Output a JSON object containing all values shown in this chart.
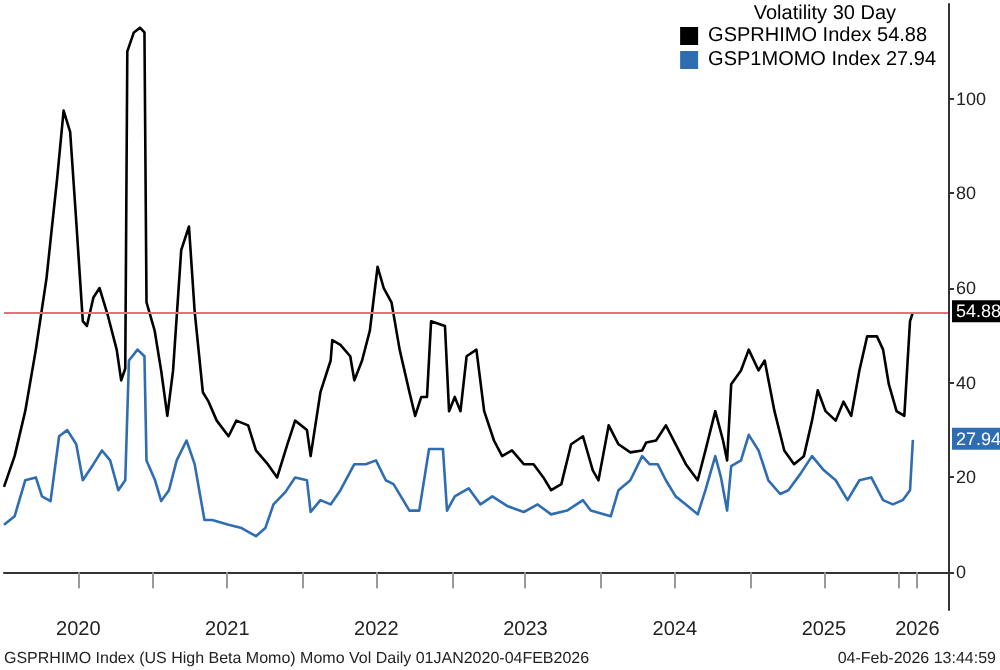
{
  "chart_data": {
    "type": "line",
    "legend_title": "Volatility 30 Day",
    "legend": "top right",
    "xlim": [
      "2020-01-01",
      "2026-05-01"
    ],
    "xticks": [
      {
        "value": "2020-07-01",
        "label": "2020"
      },
      {
        "value": "2021-01-01",
        "label": null
      },
      {
        "value": "2021-07-01",
        "label": "2021"
      },
      {
        "value": "2022-01-01",
        "label": null
      },
      {
        "value": "2022-07-01",
        "label": "2022"
      },
      {
        "value": "2023-01-01",
        "label": null
      },
      {
        "value": "2023-07-01",
        "label": "2023"
      },
      {
        "value": "2024-01-01",
        "label": null
      },
      {
        "value": "2024-07-01",
        "label": "2024"
      },
      {
        "value": "2025-01-01",
        "label": null
      },
      {
        "value": "2025-07-01",
        "label": "2025"
      },
      {
        "value": "2026-01-01",
        "label": null
      },
      {
        "value": "2026-02-15",
        "label": "2026"
      }
    ],
    "ylim": [
      -8,
      120
    ],
    "yticks": [
      0,
      20,
      40,
      60,
      80,
      100
    ],
    "grid": false,
    "marker": "none",
    "line_style": "solid",
    "series": [
      {
        "name": "GSPRHIMO Index 54.88",
        "color": "#000000",
        "x": [
          "2020-01-01",
          "2020-01-27",
          "2020-02-22",
          "2020-03-19",
          "2020-04-14",
          "2020-05-10",
          "2020-05-26",
          "2020-06-11",
          "2020-06-26",
          "2020-07-12",
          "2020-07-22",
          "2020-08-07",
          "2020-08-22",
          "2020-09-12",
          "2020-10-03",
          "2020-10-14",
          "2020-10-24",
          "2020-10-29",
          "2020-11-14",
          "2020-11-29",
          "2020-12-10",
          "2020-12-15",
          "2021-01-04",
          "2021-01-20",
          "2021-02-04",
          "2021-02-18",
          "2021-03-10",
          "2021-03-29",
          "2021-04-12",
          "2021-05-02",
          "2021-05-16",
          "2021-06-05",
          "2021-07-04",
          "2021-07-23",
          "2021-08-21",
          "2021-09-09",
          "2021-10-08",
          "2021-10-31",
          "2021-11-25",
          "2021-12-14",
          "2022-01-12",
          "2022-01-21",
          "2022-02-14",
          "2022-03-11",
          "2022-03-15",
          "2022-04-04",
          "2022-04-28",
          "2022-05-08",
          "2022-05-27",
          "2022-06-15",
          "2022-07-04",
          "2022-07-19",
          "2022-08-07",
          "2022-08-27",
          "2022-09-20",
          "2022-10-04",
          "2022-10-19",
          "2022-11-02",
          "2022-11-12",
          "2022-12-16",
          "2022-12-26",
          "2023-01-09",
          "2023-01-23",
          "2023-02-07",
          "2023-03-03",
          "2023-03-22",
          "2023-04-15",
          "2023-05-05",
          "2023-05-29",
          "2023-06-27",
          "2023-07-21",
          "2023-08-14",
          "2023-09-02",
          "2023-09-27",
          "2023-10-21",
          "2023-11-19",
          "2023-12-13",
          "2023-12-27",
          "2024-01-21",
          "2024-02-14",
          "2024-03-14",
          "2024-04-12",
          "2024-04-22",
          "2024-05-16",
          "2024-06-09",
          "2024-07-03",
          "2024-07-28",
          "2024-08-26",
          "2024-09-14",
          "2024-10-08",
          "2024-10-27",
          "2024-11-06",
          "2024-11-16",
          "2024-12-10",
          "2024-12-29",
          "2025-01-22",
          "2025-02-06",
          "2025-03-02",
          "2025-03-26",
          "2025-04-19",
          "2025-05-13",
          "2025-06-02",
          "2025-06-16",
          "2025-07-05",
          "2025-07-30",
          "2025-08-18",
          "2025-09-06",
          "2025-09-26",
          "2025-10-15",
          "2025-11-08",
          "2025-11-23",
          "2025-12-07",
          "2025-12-26",
          "2026-01-14",
          "2026-01-28",
          "2026-02-04"
        ],
        "values": [
          18,
          24.5,
          34,
          47,
          62,
          83,
          97.5,
          93,
          74,
          53,
          52,
          58,
          60,
          54,
          47,
          40.5,
          43,
          110,
          114,
          115,
          114,
          57,
          51,
          42.5,
          33,
          42.5,
          68,
          73,
          55,
          38,
          36,
          32,
          28.7,
          32,
          31,
          25.7,
          22.8,
          20,
          27,
          32,
          30,
          24.5,
          38,
          44.7,
          49,
          48,
          45.6,
          40.5,
          44.7,
          51,
          64.5,
          60,
          57,
          47,
          38,
          33,
          37,
          37,
          53,
          52,
          34,
          37,
          34,
          45.6,
          47,
          34,
          27.8,
          24.5,
          25.7,
          22.8,
          22.8,
          20,
          17.3,
          18.6,
          27,
          28.7,
          21.5,
          19.4,
          31,
          27,
          25.3,
          25.7,
          27.4,
          27.8,
          31,
          27,
          22.8,
          19.4,
          25.7,
          34,
          27.8,
          23.6,
          39.7,
          42.6,
          47,
          42.6,
          44.7,
          34,
          25.7,
          22.8,
          24.5,
          32,
          38.4,
          34,
          32,
          36,
          33,
          42.6,
          49.8,
          49.8,
          47,
          39.7,
          34,
          33,
          53,
          54.88
        ]
      },
      {
        "name": "GSP1MOMO Index 27.94",
        "color": "#2f6db3",
        "x": [
          "2020-01-01",
          "2020-01-27",
          "2020-02-22",
          "2020-03-19",
          "2020-04-03",
          "2020-04-24",
          "2020-05-15",
          "2020-06-04",
          "2020-06-26",
          "2020-07-12",
          "2020-08-07",
          "2020-08-28",
          "2020-09-17",
          "2020-10-07",
          "2020-10-24",
          "2020-11-02",
          "2020-11-23",
          "2020-12-10",
          "2020-12-15",
          "2021-01-05",
          "2021-01-20",
          "2021-02-08",
          "2021-02-27",
          "2021-03-23",
          "2021-04-12",
          "2021-05-06",
          "2021-05-25",
          "2021-07-04",
          "2021-08-05",
          "2021-09-09",
          "2021-10-02",
          "2021-10-22",
          "2021-11-20",
          "2021-12-14",
          "2022-01-12",
          "2022-01-21",
          "2022-02-14",
          "2022-03-11",
          "2022-04-04",
          "2022-05-08",
          "2022-06-05",
          "2022-06-30",
          "2022-07-24",
          "2022-08-12",
          "2022-09-20",
          "2022-10-14",
          "2022-11-07",
          "2022-12-11",
          "2022-12-21",
          "2023-01-09",
          "2023-02-12",
          "2023-03-13",
          "2023-04-11",
          "2023-05-19",
          "2023-06-27",
          "2023-07-31",
          "2023-09-02",
          "2023-10-11",
          "2023-11-19",
          "2023-12-08",
          "2024-01-26",
          "2024-02-14",
          "2024-03-14",
          "2024-04-12",
          "2024-04-30",
          "2024-05-20",
          "2024-06-09",
          "2024-07-03",
          "2024-07-28",
          "2024-08-26",
          "2024-09-14",
          "2024-10-08",
          "2024-10-22",
          "2024-11-06",
          "2024-11-16",
          "2024-12-10",
          "2024-12-29",
          "2025-01-22",
          "2025-02-15",
          "2025-03-16",
          "2025-04-05",
          "2025-05-04",
          "2025-06-02",
          "2025-07-01",
          "2025-07-30",
          "2025-08-28",
          "2025-09-26",
          "2025-10-25",
          "2025-11-23",
          "2025-12-17",
          "2026-01-10",
          "2026-01-28",
          "2026-02-04"
        ],
        "values": [
          10,
          11.8,
          19.4,
          20,
          16,
          15,
          28.7,
          30,
          27,
          19.4,
          22.8,
          25.7,
          23.6,
          17.3,
          19.4,
          44.7,
          47,
          45.6,
          23.6,
          19.4,
          15,
          17.3,
          23.6,
          27.8,
          22.8,
          11,
          11,
          10,
          9.3,
          7.6,
          9.3,
          14.3,
          16.9,
          20,
          19.4,
          12.7,
          15.2,
          14.3,
          17.3,
          22.8,
          22.8,
          23.6,
          19.4,
          18.6,
          13,
          13,
          26,
          26,
          13,
          16,
          17.7,
          14.3,
          16,
          13.9,
          12.7,
          14.3,
          12.2,
          13,
          15.2,
          13,
          11.8,
          17.3,
          19.4,
          24.5,
          22.8,
          22.8,
          19.4,
          16,
          14.3,
          12.2,
          17.3,
          24.5,
          20,
          13,
          22.4,
          23.6,
          29,
          25.7,
          19.4,
          16.5,
          17.3,
          20.7,
          24.5,
          21.5,
          19.4,
          15.2,
          19.4,
          20,
          15.2,
          14.3,
          15.2,
          17.3,
          27.94
        ]
      }
    ],
    "ref_lines": [
      {
        "axis": "y",
        "value": 54.88,
        "color": "#e8707c"
      }
    ],
    "annotations": [
      {
        "text": "54.88",
        "x": "2026-02-04",
        "y": 54.88
      },
      {
        "text": "27.94",
        "x": "2026-02-04",
        "y": 27.94
      },
      "GSPRHIMO Index (US High Beta Momo) Momo Vol Daily 01JAN2020-04FEB2026",
      "04-Feb-2026 13:44:59"
    ]
  }
}
